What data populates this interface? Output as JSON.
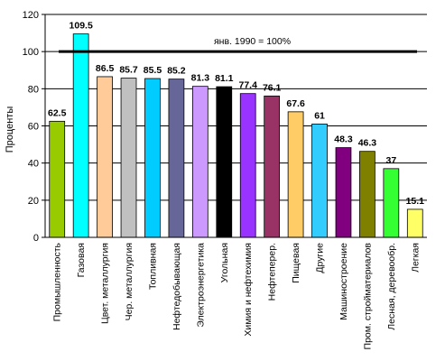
{
  "chart_data": {
    "type": "bar",
    "ylabel": "Проценты",
    "ylim": [
      0,
      120
    ],
    "yticks": [
      0,
      20,
      40,
      60,
      80,
      100,
      120
    ],
    "grid": "horizontal",
    "reference_line": {
      "value": 100,
      "label": "янв. 1990 = 100%"
    },
    "categories": [
      "Промышленность",
      "Газовая",
      "Цвет. металлургия",
      "Чер. металлургия",
      "Топливная",
      "Нефтедобывающая",
      "Электроэнергетика",
      "Угольная",
      "Химия и нефтехимия",
      "Нефтеперер.",
      "Пищевая",
      "Другие",
      "Машиностроение",
      "Пром. стройматериалов",
      "Лесная, деревообр.",
      "Легкая"
    ],
    "values": [
      62.5,
      109.5,
      86.5,
      85.7,
      85.5,
      85.2,
      81.3,
      81.1,
      77.4,
      76.1,
      67.6,
      61,
      48.3,
      46.3,
      37,
      15.1
    ],
    "value_labels": [
      "62.5",
      "109.5",
      "86.5",
      "85.7",
      "85.5",
      "85.2",
      "81.3",
      "81.1",
      "77.4",
      "76.1",
      "67.6",
      "61",
      "48.3",
      "46.3",
      "37",
      "15.1"
    ],
    "colors": [
      "#99cc00",
      "#00ffff",
      "#ffcc99",
      "#c0c0c0",
      "#00ccff",
      "#666699",
      "#cc99ff",
      "#000000",
      "#9933ff",
      "#993366",
      "#ffcc66",
      "#33ccff",
      "#800080",
      "#808000",
      "#33ff33",
      "#ffff66"
    ]
  }
}
